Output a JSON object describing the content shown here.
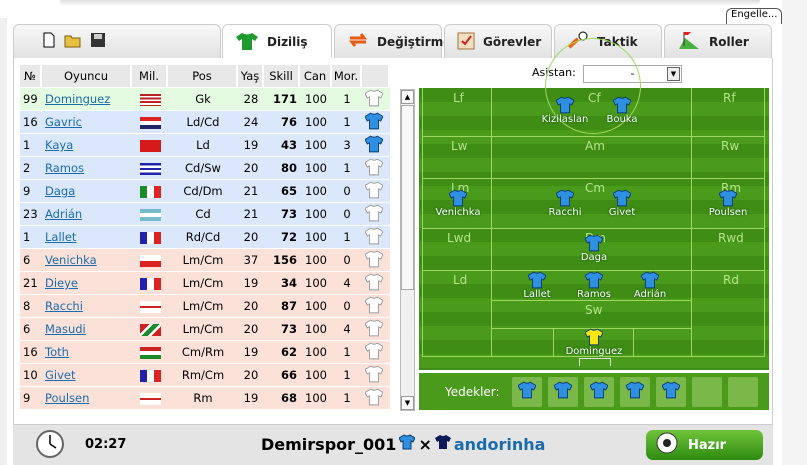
{
  "header": {
    "block_button": "Engelle..."
  },
  "tabs": [
    {
      "label": "Diziliş",
      "icon": "jersey-icon",
      "active": true
    },
    {
      "label": "Değiştirme",
      "icon": "swap-icon"
    },
    {
      "label": "Görevler",
      "icon": "clipboard-icon"
    },
    {
      "label": "Taktik",
      "icon": "kick-icon"
    },
    {
      "label": "Roller",
      "icon": "corner-flag-icon"
    }
  ],
  "table": {
    "headers": [
      "№",
      "Oyuncu",
      "Mil.",
      "Pos",
      "Yaş",
      "Skill",
      "Can",
      "Mor."
    ],
    "rows": [
      {
        "num": "99",
        "name": "Dominguez",
        "flag": "USA",
        "pos": "Gk",
        "age": "28",
        "skill": "171",
        "can": "100",
        "mor": "1",
        "group": "gk",
        "sub": false
      },
      {
        "num": "16",
        "name": "Gavric",
        "flag": "Croatia",
        "pos": "Ld/Cd",
        "age": "24",
        "skill": "76",
        "can": "100",
        "mor": "1",
        "group": "def",
        "sub": true
      },
      {
        "num": "1",
        "name": "Kaya",
        "flag": "Turkey",
        "pos": "Ld",
        "age": "19",
        "skill": "43",
        "can": "100",
        "mor": "3",
        "group": "def",
        "sub": true
      },
      {
        "num": "2",
        "name": "Ramos",
        "flag": "Cuba",
        "pos": "Cd/Sw",
        "age": "20",
        "skill": "80",
        "can": "100",
        "mor": "1",
        "group": "def",
        "sub": false
      },
      {
        "num": "9",
        "name": "Daga",
        "flag": "Italy",
        "pos": "Cd/Dm",
        "age": "21",
        "skill": "65",
        "can": "100",
        "mor": "0",
        "group": "def",
        "sub": false
      },
      {
        "num": "23",
        "name": "Adrián",
        "flag": "Argentina",
        "pos": "Cd",
        "age": "21",
        "skill": "73",
        "can": "100",
        "mor": "0",
        "group": "def",
        "sub": false
      },
      {
        "num": "1",
        "name": "Lallet",
        "flag": "France",
        "pos": "Rd/Cd",
        "age": "20",
        "skill": "72",
        "can": "100",
        "mor": "1",
        "group": "def",
        "sub": false
      },
      {
        "num": "6",
        "name": "Venichka",
        "flag": "Czech Republic",
        "pos": "Lm/Cm",
        "age": "37",
        "skill": "156",
        "can": "100",
        "mor": "0",
        "group": "mid",
        "sub": false
      },
      {
        "num": "21",
        "name": "Dieye",
        "flag": "France",
        "pos": "Lm/Cm",
        "age": "19",
        "skill": "34",
        "can": "100",
        "mor": "4",
        "group": "mid",
        "sub": false
      },
      {
        "num": "8",
        "name": "Racchi",
        "flag": "England",
        "pos": "Lm/Cm",
        "age": "20",
        "skill": "87",
        "can": "100",
        "mor": "0",
        "group": "mid",
        "sub": false
      },
      {
        "num": "6",
        "name": "Masudi",
        "flag": "Burundi",
        "pos": "Lm/Cm",
        "age": "20",
        "skill": "73",
        "can": "100",
        "mor": "4",
        "group": "mid",
        "sub": false
      },
      {
        "num": "16",
        "name": "Toth",
        "flag": "Hungary",
        "pos": "Cm/Rm",
        "age": "19",
        "skill": "62",
        "can": "100",
        "mor": "1",
        "group": "mid",
        "sub": false
      },
      {
        "num": "10",
        "name": "Givet",
        "flag": "France",
        "pos": "Rm/Cm",
        "age": "20",
        "skill": "66",
        "can": "100",
        "mor": "1",
        "group": "mid",
        "sub": false
      },
      {
        "num": "9",
        "name": "Poulsen",
        "flag": "Faroe Islands",
        "pos": "Rm",
        "age": "19",
        "skill": "68",
        "can": "100",
        "mor": "1",
        "group": "mid",
        "sub": false
      }
    ]
  },
  "assistant": {
    "label": "Asistan:",
    "value": "-"
  },
  "pitch": {
    "zones": [
      "Lf",
      "Cf",
      "Rf",
      "Lw",
      "Am",
      "Rw",
      "Lm",
      "Cm",
      "Rm",
      "Lwd",
      "Dm",
      "Rwd",
      "Ld",
      "Rd",
      "Sw"
    ],
    "players": [
      "Kizilaslan",
      "Bouka",
      "Venichka",
      "Racchi",
      "Givet",
      "Poulsen",
      "Daga",
      "Lallet",
      "Ramos",
      "Adrián",
      "Dominguez"
    ],
    "gk_number": "99"
  },
  "subs": {
    "label": "Yedekler:",
    "filled": 5,
    "slots": 7
  },
  "footer": {
    "time": "02:27",
    "home": "Demirspor_001",
    "separator": "×",
    "away": "andorinha",
    "ready": "Hazır"
  },
  "colors": {
    "shirt": "#2f8fe0",
    "gk_shirt": "#f5e614",
    "away_shirt": "#0a1a5a",
    "pitch": "#4a9a1b"
  }
}
